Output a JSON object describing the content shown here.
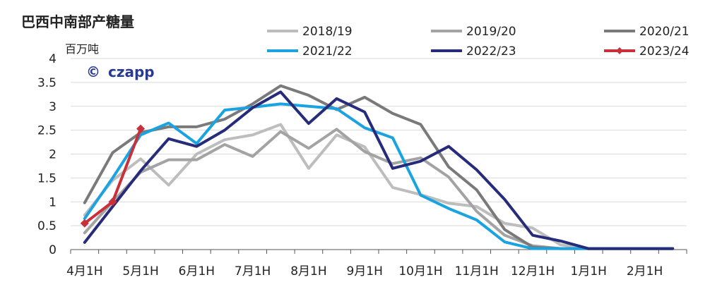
{
  "chart_data": {
    "type": "line",
    "title": "巴西中南部产糖量",
    "ylabel": "百万吨",
    "xlabel": "",
    "ylim": [
      0,
      4
    ],
    "yticks": [
      "0",
      "0.5",
      "1",
      "1.5",
      "2",
      "2.5",
      "3",
      "3.5",
      "4"
    ],
    "x_tick_labels": [
      "4月1H",
      "5月1H",
      "6月1H",
      "7月1H",
      "8月1H",
      "9月1H",
      "10月1H",
      "11月1H",
      "12月1H",
      "1月1H",
      "2月1H"
    ],
    "x_count": 22,
    "grid": "horizontal",
    "legend": "top",
    "logo_text": "czapp",
    "logo_symbol": "©",
    "series": [
      {
        "name": "2018/19",
        "color": "#bdbdbd",
        "marker": false,
        "values": [
          0.72,
          1.45,
          1.9,
          1.35,
          2.0,
          2.3,
          2.4,
          2.62,
          1.7,
          2.4,
          2.15,
          1.3,
          1.15,
          0.97,
          0.9,
          0.55,
          0.45,
          0.1,
          0.02,
          0.02,
          0.02,
          0.02
        ]
      },
      {
        "name": "2019/20",
        "color": "#a3a3a3",
        "marker": false,
        "values": [
          0.35,
          1.0,
          1.62,
          1.88,
          1.88,
          2.2,
          1.95,
          2.47,
          2.12,
          2.52,
          2.05,
          1.8,
          1.92,
          1.52,
          0.8,
          0.3,
          0.08,
          0.02,
          0.02,
          0.02,
          0.02,
          0.02
        ]
      },
      {
        "name": "2020/21",
        "color": "#7a7a7a",
        "marker": false,
        "values": [
          0.98,
          2.03,
          2.45,
          2.57,
          2.57,
          2.73,
          3.05,
          3.43,
          3.23,
          2.93,
          3.19,
          2.85,
          2.62,
          1.73,
          1.25,
          0.42,
          0.05,
          0.02,
          0.02,
          0.02,
          0.02,
          0.02
        ]
      },
      {
        "name": "2021/22",
        "color": "#1aa3e0",
        "marker": false,
        "values": [
          0.65,
          1.5,
          2.4,
          2.65,
          2.22,
          2.92,
          2.98,
          3.05,
          3.0,
          2.95,
          2.55,
          2.34,
          1.14,
          0.86,
          0.62,
          0.16,
          0.02,
          0.02,
          0.02,
          0.02,
          0.02,
          0.02
        ]
      },
      {
        "name": "2022/23",
        "color": "#262b7a",
        "marker": false,
        "values": [
          0.15,
          0.9,
          1.65,
          2.32,
          2.16,
          2.5,
          2.97,
          3.3,
          2.64,
          3.16,
          2.88,
          1.7,
          1.85,
          2.16,
          1.67,
          1.05,
          0.3,
          0.18,
          0.02,
          0.02,
          0.02,
          0.02
        ]
      },
      {
        "name": "2023/24",
        "color": "#c8303a",
        "marker": true,
        "values": [
          0.55,
          1.0,
          2.53
        ]
      }
    ]
  }
}
